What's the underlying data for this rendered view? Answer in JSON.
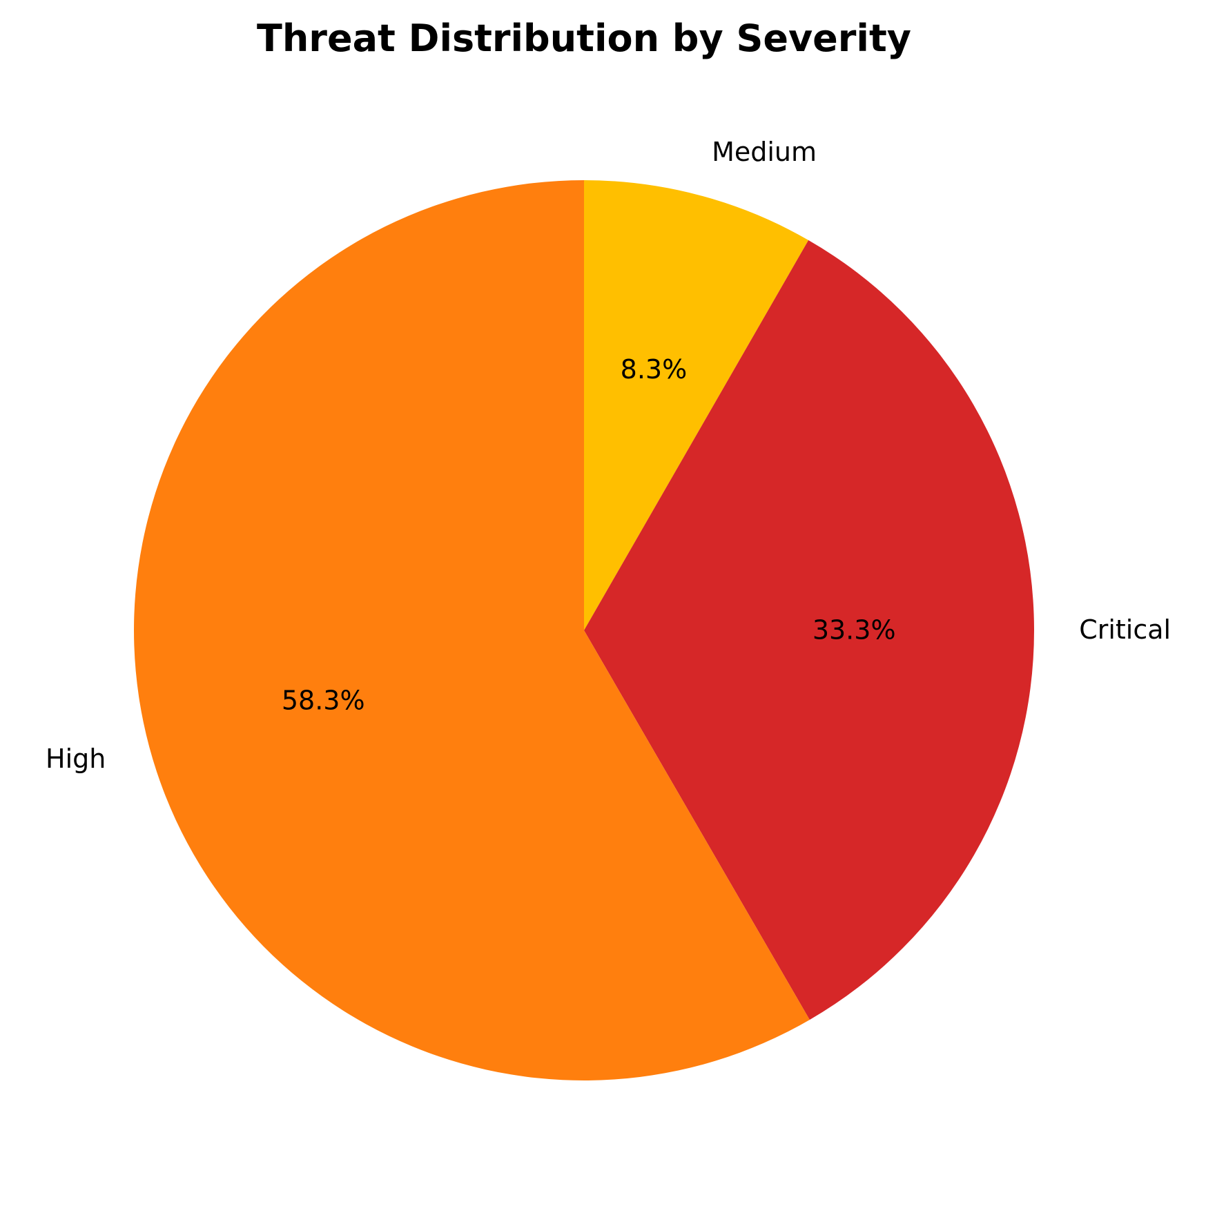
{
  "chart_data": {
    "type": "pie",
    "title": "Threat Distribution by Severity",
    "categories": [
      "Medium",
      "Critical",
      "High"
    ],
    "values": [
      8.3,
      33.3,
      58.3
    ],
    "labels": [
      "8.3%",
      "33.3%",
      "58.3%"
    ],
    "colors": [
      "#FFBF00",
      "#D62728",
      "#FF7F0E"
    ],
    "start_angle_deg": 90,
    "direction": "clockwise",
    "legend": "none"
  }
}
